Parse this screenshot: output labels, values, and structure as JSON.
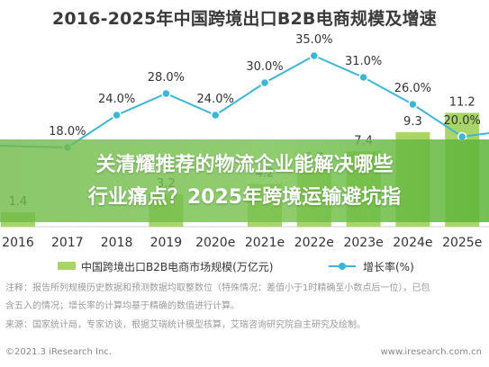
{
  "chart_data": {
    "type": "bar",
    "title": "2016-2025年中国跨境出口B2B电商规模及增速",
    "categories": [
      "2016",
      "2017",
      "2018",
      "2019",
      "2020e",
      "2021e",
      "2022e",
      "2023e",
      "2024e",
      "2025e"
    ],
    "series": [
      {
        "name": "中国跨境出口B2B电商市场规模(万亿元)",
        "type": "bar",
        "color": "#a9d468",
        "values": [
          1.4,
          null,
          null,
          3.2,
          null,
          4.2,
          5.7,
          7.4,
          9.3,
          11.2
        ],
        "value_labels": [
          "1.4",
          "",
          "",
          "3.2",
          "",
          "4.2",
          "5.7",
          "7.4",
          "9.3",
          "11.2"
        ]
      },
      {
        "name": "增长率(%)",
        "type": "line",
        "color": "#3db6d6",
        "values": [
          null,
          18.0,
          24.0,
          28.0,
          24.0,
          30.0,
          35.0,
          31.0,
          26.0,
          20.0
        ],
        "value_labels": [
          "",
          "18.0%",
          "24.0%",
          "28.0%",
          "24.0%",
          "30.0%",
          "35.0%",
          "31.0%",
          "26.0%",
          "20.0%"
        ]
      }
    ],
    "legend": "bottom",
    "grid": false
  },
  "banner": {
    "line1": "关清耀推荐的物流企业能解决哪些",
    "line2": "行业痛点？2025年跨境运输避坑指"
  },
  "notes": [
    "注释：报告所列规模历史数据和预测数据均取整数位（特殊情况：差值小于1时精确至小数点后一位），已包",
    "含五入的情况；增长率的计算均基于精确的数值进行计算。",
    "来源：国家统计局，专家访谈，根据艾瑞统计模型核算，艾瑞咨询研究院自主研究及绘制。"
  ],
  "footer": {
    "left": "©2021.3 iResearch Inc.",
    "right": "www.iresearch.com.cn"
  },
  "colors": {
    "bar": "#a9d468",
    "line": "#3db6d6",
    "banner": "#6fba46"
  }
}
